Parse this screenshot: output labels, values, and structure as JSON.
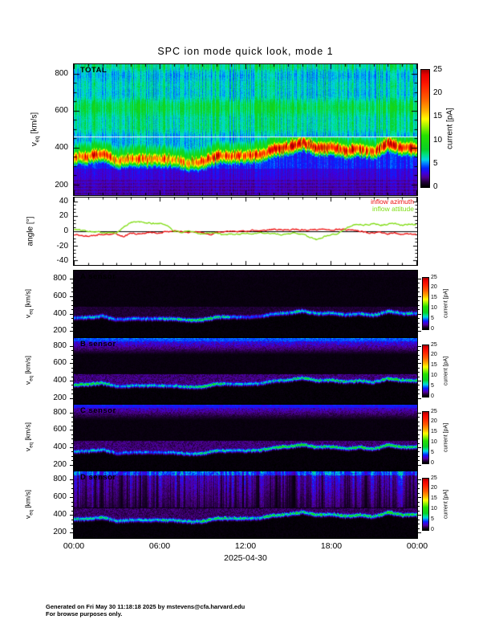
{
  "title": "SPC ion mode quick look, mode 1",
  "x_axis": {
    "tick_labels": [
      "00:00",
      "06:00",
      "12:00",
      "18:00",
      "00:00"
    ],
    "tick_hours": [
      0,
      6,
      12,
      18,
      24
    ],
    "date_label": "2025-04-30"
  },
  "velocity_axis": {
    "symbol": "v",
    "subscript": "eq",
    "units": "[km/s]",
    "tick_values": [
      200,
      400,
      600,
      800
    ]
  },
  "angle_axis": {
    "label": "angle [°]",
    "tick_values": [
      -40,
      -20,
      0,
      20,
      40
    ]
  },
  "colorbar": {
    "label": "current [pA]",
    "tick_values": [
      0,
      5,
      10,
      15,
      20,
      25
    ],
    "range": [
      0,
      25
    ]
  },
  "panel_labels": {
    "total": "TOTAL",
    "sensor_a": "A sensor",
    "sensor_b": "B sensor",
    "sensor_c": "C sensor",
    "sensor_d": "D sensor"
  },
  "footer": {
    "line1": "Generated on Fri May 30 11:18:18 2025 by mstevens@cfa.harvard.edu",
    "line2": "For browse purposes only."
  },
  "chart_data": [
    {
      "type": "heatmap",
      "panel": "TOTAL",
      "ylabel": "veq [km/s]",
      "ylim": [
        148,
        850
      ],
      "clim": [
        0,
        25
      ],
      "colorbar_label": "current [pA]",
      "white_line_kms": 460,
      "background_current_pA": 7,
      "low_velocity_current_pA": 3.5,
      "x_hours": [
        0,
        1,
        2,
        3,
        4,
        5,
        6,
        7,
        8,
        9,
        10,
        11,
        12,
        13,
        14,
        15,
        16,
        17,
        18,
        19,
        20,
        21,
        22,
        23,
        24
      ],
      "bulk_velocity_kms": [
        350,
        355,
        370,
        330,
        340,
        340,
        340,
        338,
        322,
        325,
        360,
        358,
        360,
        365,
        395,
        405,
        430,
        400,
        405,
        385,
        398,
        380,
        425,
        400,
        400
      ],
      "peak_current_pA": [
        20,
        20,
        23,
        19,
        19,
        19,
        20,
        18,
        18,
        20,
        23,
        22,
        22,
        21,
        24,
        25,
        24,
        24,
        23,
        21,
        23,
        21,
        25,
        22,
        23
      ]
    },
    {
      "type": "line",
      "panel": "angle",
      "ylabel": "angle [°]",
      "ylim": [
        -45,
        45
      ],
      "x_hours": [
        0,
        0.5,
        1,
        1.5,
        2,
        2.5,
        3,
        3.5,
        4,
        4.5,
        5,
        5.5,
        6,
        6.5,
        7,
        7.5,
        8,
        8.5,
        9,
        9.5,
        10,
        10.5,
        11,
        11.5,
        12,
        12.5,
        13,
        13.5,
        14,
        14.5,
        15,
        15.5,
        16,
        16.5,
        17,
        17.5,
        18,
        18.5,
        19,
        19.5,
        20,
        20.5,
        21,
        21.5,
        22,
        22.5,
        23,
        23.5,
        24
      ],
      "series": [
        {
          "name": "inflow azimuth",
          "color": "#ee1111",
          "values_deg": [
            -5,
            -6,
            -7,
            -6,
            -5,
            -5,
            -4,
            -8,
            -3,
            -4,
            -3,
            -2,
            -3,
            -1,
            -1,
            -1,
            -2,
            -1,
            -2,
            -5,
            -2,
            -1,
            0,
            -1,
            0,
            1,
            0,
            1,
            2,
            2,
            1,
            2,
            2,
            1,
            2,
            2,
            1,
            2,
            2,
            1,
            0,
            -2,
            -3,
            -2,
            -4,
            -3,
            -5,
            -4,
            -5
          ]
        },
        {
          "name": "inflow attitude",
          "color": "#7fdd11",
          "values_deg": [
            2,
            1,
            0,
            -1,
            -2,
            -2,
            -3,
            5,
            12,
            12,
            11,
            10,
            10,
            8,
            0,
            -2,
            -1,
            -2,
            -4,
            -2,
            -3,
            -6,
            -4,
            -5,
            -3,
            -4,
            -2,
            -4,
            -3,
            -5,
            -4,
            -3,
            -5,
            -8,
            -12,
            -8,
            -5,
            -3,
            2,
            8,
            9,
            8,
            10,
            8,
            9,
            10,
            8,
            9,
            8
          ]
        }
      ]
    },
    {
      "type": "heatmap",
      "panel": "A sensor",
      "ylim": [
        140,
        890
      ],
      "clim": [
        0,
        25
      ],
      "band_follows_total_velocity": true,
      "x_hours": [
        0,
        1,
        2,
        3,
        4,
        5,
        6,
        7,
        8,
        9,
        10,
        11,
        12,
        13,
        14,
        15,
        16,
        17,
        18,
        19,
        20,
        21,
        22,
        23,
        24
      ],
      "band_current_pA": [
        5,
        6,
        6,
        5,
        5,
        5,
        6,
        7,
        8,
        8,
        8,
        6,
        4,
        4,
        6,
        6,
        7,
        6,
        6,
        6,
        6,
        6,
        7,
        6,
        6
      ],
      "background": "black"
    },
    {
      "type": "heatmap",
      "panel": "B sensor",
      "ylim": [
        140,
        890
      ],
      "clim": [
        0,
        25
      ],
      "band_follows_total_velocity": true,
      "x_hours": [
        0,
        1,
        2,
        3,
        4,
        5,
        6,
        7,
        8,
        9,
        10,
        11,
        12,
        13,
        14,
        15,
        16,
        17,
        18,
        19,
        20,
        21,
        22,
        23,
        24
      ],
      "band_current_pA": [
        9,
        9,
        8,
        6,
        6,
        6,
        6,
        6,
        7,
        9,
        8,
        6,
        6,
        6,
        7,
        7,
        8,
        7,
        8,
        7,
        7,
        7,
        9,
        8,
        8
      ],
      "background": "blue-purple gradient above 700 km/s fading to black"
    },
    {
      "type": "heatmap",
      "panel": "C sensor",
      "ylim": [
        140,
        890
      ],
      "clim": [
        0,
        25
      ],
      "band_follows_total_velocity": true,
      "x_hours": [
        0,
        1,
        2,
        3,
        4,
        5,
        6,
        7,
        8,
        9,
        10,
        11,
        12,
        13,
        14,
        15,
        16,
        17,
        18,
        19,
        20,
        21,
        22,
        23,
        24
      ],
      "band_current_pA": [
        6,
        6,
        6,
        5,
        5,
        5,
        5,
        5,
        6,
        7,
        7,
        6,
        6,
        7,
        9,
        9,
        9,
        8,
        8,
        8,
        9,
        8,
        9,
        8,
        8
      ],
      "background": "blue-purple gradient above 700 km/s fading to black"
    },
    {
      "type": "heatmap",
      "panel": "D sensor",
      "ylim": [
        140,
        890
      ],
      "clim": [
        0,
        25
      ],
      "band_follows_total_velocity": true,
      "x_hours": [
        0,
        1,
        2,
        3,
        4,
        5,
        6,
        7,
        8,
        9,
        10,
        11,
        12,
        13,
        14,
        15,
        16,
        17,
        18,
        19,
        20,
        21,
        22,
        23,
        24
      ],
      "band_current_pA": [
        7,
        7,
        7,
        6,
        6,
        6,
        7,
        7,
        7,
        8,
        8,
        7,
        7,
        7,
        8,
        8,
        8,
        8,
        8,
        8,
        8,
        8,
        9,
        8,
        8
      ],
      "background": "vertical blue streaks 0-6 pA between 490 and 880 km/s"
    }
  ]
}
